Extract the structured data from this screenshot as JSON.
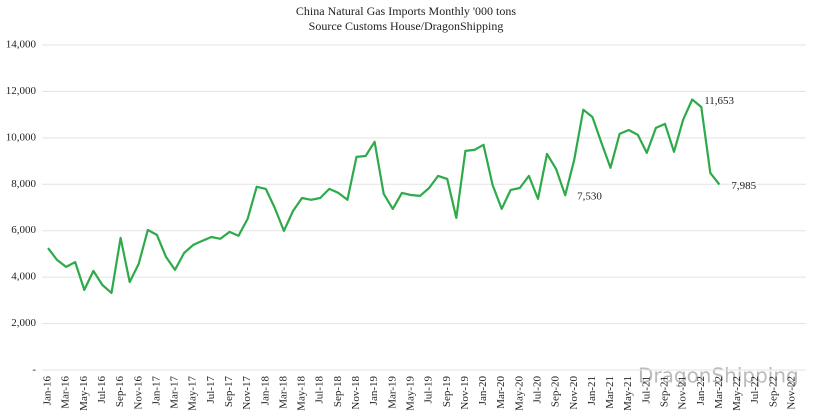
{
  "chart_data": {
    "type": "line",
    "title": "China Natural Gas Imports Monthly '000 tons",
    "subtitle": "Source Customs House/DragonShipping",
    "watermark": "DragonShipping",
    "categories": [
      "Jan-16",
      null,
      "Mar-16",
      null,
      "May-16",
      null,
      "Jul-16",
      null,
      "Sep-16",
      null,
      "Nov-16",
      null,
      "Jan-17",
      null,
      "Mar-17",
      null,
      "May-17",
      null,
      "Jul-17",
      null,
      "Sep-17",
      null,
      "Nov-17",
      null,
      "Jan-18",
      null,
      "Mar-18",
      null,
      "May-18",
      null,
      "Jul-18",
      null,
      "Sep-18",
      null,
      "Nov-18",
      null,
      "Jan-19",
      null,
      "Mar-19",
      null,
      "May-19",
      null,
      "Jul-19",
      null,
      "Sep-19",
      null,
      "Nov-19",
      null,
      "Jan-20",
      null,
      "Mar-20",
      null,
      "May-20",
      null,
      "Jul-20",
      null,
      "Sep-20",
      null,
      "Nov-20",
      null,
      "Jan-21",
      null,
      "Mar-21",
      null,
      "May-21",
      null,
      "Jul-21",
      null,
      "Sep-21",
      null,
      "Nov-21",
      null,
      "Jan-22",
      null,
      "Mar-22",
      null,
      "May-22",
      null,
      "Jul-22",
      null,
      "Sep-22",
      null,
      "Nov-22",
      null
    ],
    "series": [
      {
        "name": "China Natural Gas Imports",
        "color": "#2eaa4a",
        "values": [
          5250,
          4740,
          4440,
          4650,
          3450,
          4270,
          3660,
          3320,
          5690,
          3790,
          4570,
          6030,
          5820,
          4870,
          4310,
          5040,
          5390,
          5560,
          5730,
          5650,
          5950,
          5780,
          6510,
          7890,
          7800,
          6980,
          5990,
          6850,
          7410,
          7330,
          7410,
          7800,
          7630,
          7330,
          9180,
          9220,
          9830,
          7590,
          6940,
          7630,
          7540,
          7500,
          7840,
          8360,
          8230,
          6550,
          9440,
          9480,
          9700,
          7970,
          6940,
          7760,
          7840,
          8360,
          7370,
          9310,
          8660,
          7530,
          9050,
          11210,
          10900,
          9780,
          8710,
          10170,
          10340,
          10130,
          9350,
          10430,
          10600,
          9400,
          10780,
          11653,
          11330,
          8490,
          7985,
          null,
          null,
          null,
          null,
          null,
          null,
          null,
          null,
          null
        ],
        "value_labels": [
          null,
          null,
          null,
          null,
          null,
          null,
          null,
          null,
          null,
          null,
          null,
          null,
          null,
          null,
          null,
          null,
          null,
          null,
          null,
          null,
          null,
          null,
          null,
          null,
          null,
          null,
          null,
          null,
          null,
          null,
          null,
          null,
          null,
          null,
          null,
          null,
          null,
          null,
          null,
          null,
          null,
          null,
          null,
          null,
          null,
          null,
          null,
          null,
          null,
          null,
          null,
          null,
          null,
          null,
          null,
          null,
          null,
          "7,530",
          null,
          null,
          null,
          null,
          null,
          null,
          null,
          null,
          null,
          null,
          null,
          null,
          null,
          "11,653",
          null,
          null,
          "7,985",
          null,
          null,
          null,
          null,
          null,
          null,
          null,
          null,
          null
        ]
      }
    ],
    "ylim": [
      0,
      14000
    ],
    "yticks": [
      {
        "value": 0,
        "label": "-"
      },
      {
        "value": 2000,
        "label": "2,000"
      },
      {
        "value": 4000,
        "label": "4,000"
      },
      {
        "value": 6000,
        "label": "6,000"
      },
      {
        "value": 8000,
        "label": "8,000"
      },
      {
        "value": 10000,
        "label": "10,000"
      },
      {
        "value": 12000,
        "label": "12,000"
      },
      {
        "value": 14000,
        "label": "14,000"
      }
    ],
    "grid": true
  }
}
